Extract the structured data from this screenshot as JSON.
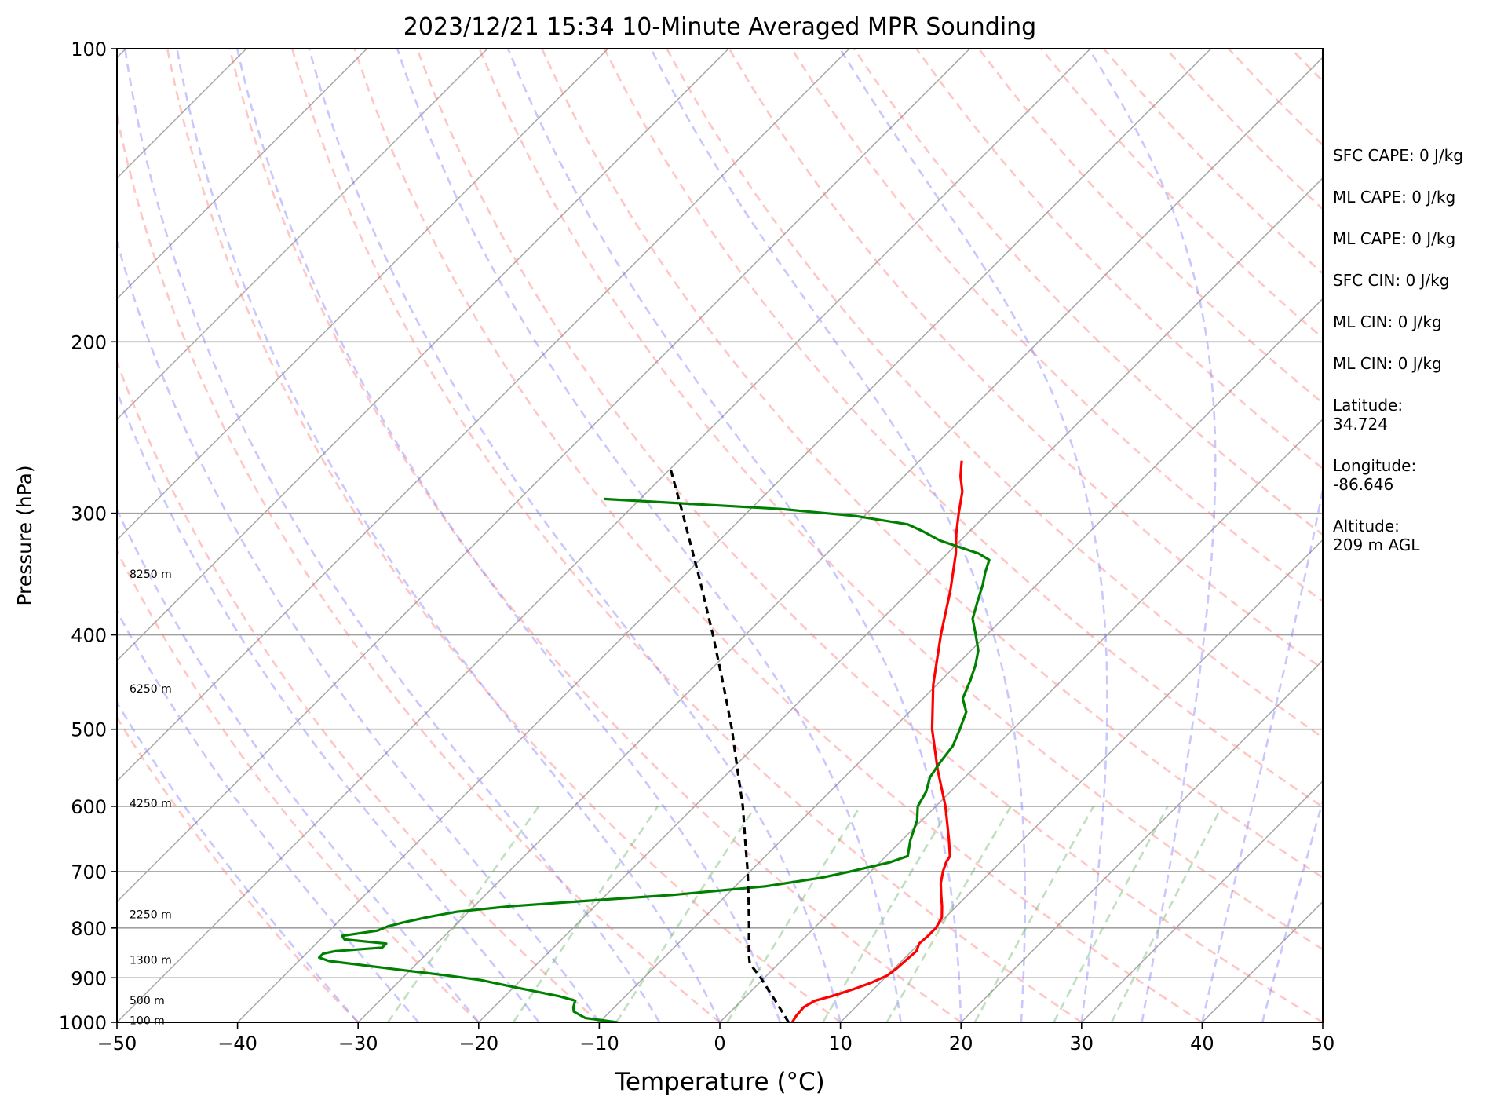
{
  "chart_data": {
    "type": "line",
    "title": "2023/12/21 15:34 10-Minute Averaged MPR Sounding",
    "xlabel": "Temperature (°C)",
    "ylabel": "Pressure (hPa)",
    "xlim": [
      -50,
      50
    ],
    "ylim": [
      1000,
      100
    ],
    "y_scale": "log",
    "grid": true,
    "x_ticks": [
      "−50",
      "−40",
      "−30",
      "−20",
      "−10",
      "0",
      "10",
      "20",
      "30",
      "40",
      "50"
    ],
    "y_ticks": [
      "100",
      "200",
      "300",
      "400",
      "500",
      "600",
      "700",
      "800",
      "900",
      "1000"
    ],
    "height_labels": [
      {
        "text": "100 m",
        "p": 997
      },
      {
        "text": "500 m",
        "p": 951
      },
      {
        "text": "1300 m",
        "p": 864
      },
      {
        "text": "2250 m",
        "p": 776
      },
      {
        "text": "4250 m",
        "p": 597
      },
      {
        "text": "6250 m",
        "p": 455
      },
      {
        "text": "8250 m",
        "p": 347
      }
    ],
    "series": [
      {
        "color": "#ff0000",
        "points": [
          [
            1000,
            6.0
          ],
          [
            985,
            5.8
          ],
          [
            965,
            5.7
          ],
          [
            950,
            6.1
          ],
          [
            940,
            7.1
          ],
          [
            925,
            8.3
          ],
          [
            910,
            9.3
          ],
          [
            895,
            10.0
          ],
          [
            880,
            10.2
          ],
          [
            860,
            10.3
          ],
          [
            845,
            10.4
          ],
          [
            830,
            10.0
          ],
          [
            815,
            10.1
          ],
          [
            800,
            10.1
          ],
          [
            780,
            9.7
          ],
          [
            760,
            8.8
          ],
          [
            740,
            7.8
          ],
          [
            720,
            6.8
          ],
          [
            700,
            6.0
          ],
          [
            685,
            5.5
          ],
          [
            675,
            5.3
          ],
          [
            650,
            3.9
          ],
          [
            600,
            0.8
          ],
          [
            550,
            -2.9
          ],
          [
            500,
            -6.7
          ],
          [
            450,
            -10.3
          ],
          [
            400,
            -13.8
          ],
          [
            360,
            -16.7
          ],
          [
            330,
            -19.3
          ],
          [
            315,
            -20.9
          ],
          [
            300,
            -22.4
          ],
          [
            285,
            -23.9
          ],
          [
            275,
            -25.3
          ],
          [
            265,
            -26.5
          ]
        ]
      },
      {
        "color": "#008000",
        "points": [
          [
            1000,
            -8.5
          ],
          [
            990,
            -11.5
          ],
          [
            975,
            -13.0
          ],
          [
            965,
            -13.4
          ],
          [
            950,
            -13.8
          ],
          [
            940,
            -15.5
          ],
          [
            920,
            -20.0
          ],
          [
            905,
            -23.3
          ],
          [
            895,
            -26.5
          ],
          [
            880,
            -32.0
          ],
          [
            865,
            -37.5
          ],
          [
            858,
            -38.6
          ],
          [
            850,
            -38.6
          ],
          [
            845,
            -37.8
          ],
          [
            838,
            -34.2
          ],
          [
            830,
            -34.2
          ],
          [
            822,
            -38.0
          ],
          [
            815,
            -38.5
          ],
          [
            805,
            -36.0
          ],
          [
            797,
            -35.5
          ],
          [
            790,
            -34.6
          ],
          [
            780,
            -33.0
          ],
          [
            770,
            -31.0
          ],
          [
            760,
            -27.0
          ],
          [
            750,
            -21.0
          ],
          [
            740,
            -14.5
          ],
          [
            725,
            -7.5
          ],
          [
            710,
            -3.5
          ],
          [
            700,
            -1.7
          ],
          [
            685,
            0.8
          ],
          [
            675,
            1.8
          ],
          [
            650,
            0.7
          ],
          [
            620,
            -0.4
          ],
          [
            600,
            -1.5
          ],
          [
            580,
            -2.0
          ],
          [
            560,
            -2.9
          ],
          [
            540,
            -3.3
          ],
          [
            520,
            -3.6
          ],
          [
            500,
            -4.4
          ],
          [
            480,
            -5.3
          ],
          [
            465,
            -6.7
          ],
          [
            445,
            -7.6
          ],
          [
            430,
            -8.4
          ],
          [
            415,
            -9.4
          ],
          [
            400,
            -10.9
          ],
          [
            385,
            -12.5
          ],
          [
            370,
            -13.5
          ],
          [
            355,
            -14.5
          ],
          [
            345,
            -15.3
          ],
          [
            335,
            -16.0
          ],
          [
            330,
            -17.4
          ],
          [
            320,
            -21.7
          ],
          [
            313,
            -23.9
          ],
          [
            308,
            -25.7
          ],
          [
            302,
            -30.7
          ],
          [
            297,
            -37.5
          ],
          [
            290,
            -53.0
          ]
        ]
      },
      {
        "color": "#000000",
        "dash": "dashed",
        "points": [
          [
            1000,
            5.7
          ],
          [
            950,
            2.8
          ],
          [
            900,
            -0.3
          ],
          [
            870,
            -2.4
          ],
          [
            850,
            -3.3
          ],
          [
            800,
            -5.4
          ],
          [
            750,
            -7.7
          ],
          [
            700,
            -10.2
          ],
          [
            650,
            -13.0
          ],
          [
            600,
            -16.0
          ],
          [
            550,
            -19.5
          ],
          [
            500,
            -23.3
          ],
          [
            450,
            -27.7
          ],
          [
            400,
            -32.7
          ],
          [
            350,
            -38.5
          ],
          [
            300,
            -45.3
          ],
          [
            270,
            -50.0
          ]
        ]
      }
    ]
  },
  "side_panel": {
    "stats": [
      "SFC CAPE: 0 J/kg",
      "ML CAPE: 0 J/kg",
      "ML CAPE: 0 J/kg",
      "SFC CIN: 0 J/kg",
      "ML CIN: 0 J/kg",
      "ML CIN: 0 J/kg"
    ],
    "latitude_label": "Latitude:",
    "latitude_value": "34.724",
    "longitude_label": "Longitude:",
    "longitude_value": "-86.646",
    "altitude_label": "Altitude:",
    "altitude_value": "209 m AGL"
  }
}
